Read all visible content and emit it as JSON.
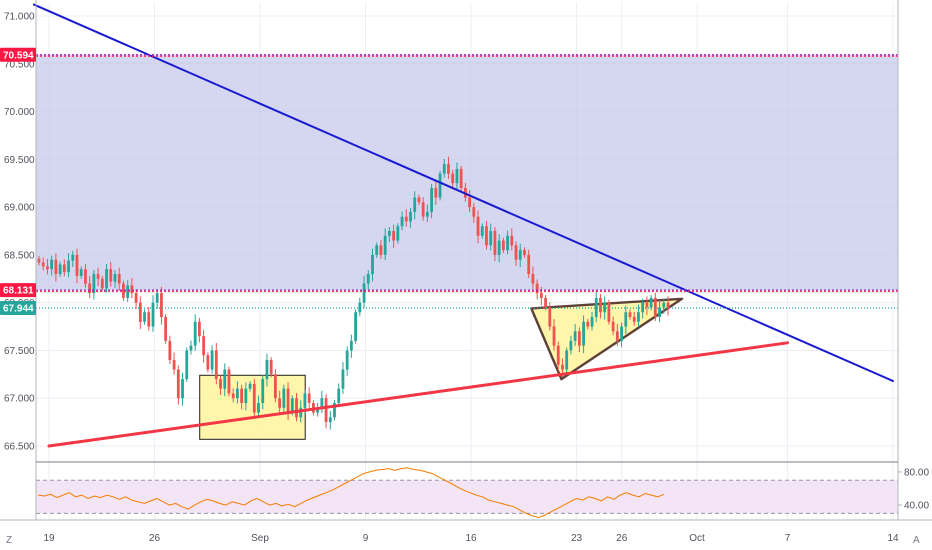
{
  "chart_data": [
    {
      "type": "candlestick",
      "title": "",
      "y_axis": {
        "side": "left",
        "ylim": [
          66.35,
          71.15
        ],
        "ticks": [
          "71.000",
          "70.500",
          "70.000",
          "69.500",
          "69.000",
          "68.500",
          "68.000",
          "67.500",
          "67.000",
          "66.500"
        ],
        "tick_values": [
          71.0,
          70.5,
          70.0,
          69.5,
          69.0,
          68.5,
          68.0,
          67.5,
          67.0,
          66.5
        ]
      },
      "x_axis": {
        "ticks": [
          "19",
          "26",
          "Sep",
          "9",
          "16",
          "23",
          "26",
          "Oct",
          "7",
          "14"
        ],
        "tick_dates": [
          "2019-08-19",
          "2019-08-26",
          "2019-09-02",
          "2019-09-09",
          "2019-09-16",
          "2019-09-23",
          "2019-09-26",
          "2019-10-01",
          "2019-10-07",
          "2019-10-14"
        ]
      },
      "price_badges": [
        {
          "label": "70.594",
          "value": 70.594,
          "color": "#ff1744"
        },
        {
          "label": "68.131",
          "value": 68.131,
          "color": "#ff1744"
        },
        {
          "label": "67.944",
          "value": 67.944,
          "color": "#26a69a"
        }
      ],
      "resistance_zone": {
        "from": 68.131,
        "to": 70.594,
        "color": "#c5cae9"
      },
      "up_color": "#26a69a",
      "down_color": "#ef5350",
      "series": [
        {
          "name": "",
          "values": [
            68.42,
            68.38,
            68.35,
            68.45,
            68.3,
            68.4,
            68.32,
            68.44,
            68.5,
            68.28,
            68.35,
            68.2,
            68.1,
            68.3,
            68.25,
            68.15,
            68.35,
            68.22,
            68.3,
            68.2,
            68.05,
            68.18,
            68.1,
            68.0,
            67.8,
            67.9,
            67.75,
            68.0,
            68.1,
            67.85,
            67.6,
            67.4,
            67.3,
            67.0,
            67.2,
            67.5,
            67.55,
            67.8,
            67.65,
            67.45,
            67.3,
            67.5,
            67.2,
            67.1,
            67.3,
            67.05,
            67.0,
            67.1,
            66.95,
            67.1,
            67.15,
            66.85,
            66.95,
            67.2,
            67.4,
            67.25,
            67.0,
            66.9,
            67.1,
            66.85,
            67.0,
            66.8,
            66.9,
            67.05,
            66.95,
            66.85,
            66.9,
            67.0,
            66.75,
            66.8,
            66.95,
            67.1,
            67.3,
            67.5,
            67.6,
            67.9,
            68.0,
            68.2,
            68.3,
            68.5,
            68.6,
            68.5,
            68.7,
            68.75,
            68.65,
            68.8,
            68.9,
            68.85,
            68.95,
            69.1,
            69.05,
            68.9,
            68.95,
            69.2,
            69.1,
            69.35,
            69.45,
            69.35,
            69.25,
            69.4,
            69.2,
            69.1,
            69.0,
            68.9,
            68.7,
            68.8,
            68.6,
            68.75,
            68.5,
            68.65,
            68.55,
            68.7,
            68.6,
            68.45,
            68.55,
            68.5,
            68.3,
            68.2,
            68.1,
            68.05,
            67.95,
            67.75,
            67.55,
            67.35,
            67.3,
            67.5,
            67.6,
            67.7,
            67.55,
            67.8,
            67.75,
            67.85,
            68.05,
            67.9,
            68.0,
            67.8,
            67.7,
            67.6,
            67.75,
            67.9,
            67.85,
            67.8,
            67.9,
            68.0,
            67.95,
            68.05,
            67.85,
            67.95,
            68.0,
            67.944
          ]
        }
      ],
      "trendlines": [
        {
          "name": "",
          "color": "#1a1ad1",
          "points": [
            [
              "2019-08-18",
              71.12
            ],
            [
              "2019-10-14",
              67.18
            ]
          ]
        },
        {
          "name": "",
          "color": "#f23645",
          "points": [
            [
              "2019-08-19",
              66.5
            ],
            [
              "2019-10-07",
              67.58
            ]
          ]
        }
      ],
      "shapes": [
        {
          "type": "rectangle",
          "fill": "#fff59d",
          "from": [
            "2019-08-29",
            67.24
          ],
          "to": [
            "2019-09-05",
            66.57
          ]
        },
        {
          "type": "triangle",
          "fill": "#fff59d",
          "points": [
            [
              "2019-09-20",
              67.94
            ],
            [
              "2019-09-22",
              67.2
            ],
            [
              "2019-09-30",
              68.04
            ]
          ]
        }
      ]
    },
    {
      "type": "line",
      "title": "",
      "y_axis": {
        "side": "right",
        "ticks": [
          "80.00",
          "40.00"
        ],
        "tick_values": [
          80,
          40
        ],
        "ylim": [
          22,
          92
        ]
      },
      "bands": {
        "upper": 70,
        "lower": 30,
        "fill": "#f3e5f5"
      },
      "series": [
        {
          "name": "",
          "color": "#f57c00",
          "values": [
            52,
            51,
            53,
            49,
            52,
            55,
            50,
            52,
            48,
            51,
            49,
            52,
            50,
            47,
            50,
            46,
            44,
            42,
            45,
            48,
            44,
            40,
            42,
            38,
            35,
            40,
            44,
            47,
            45,
            42,
            40,
            44,
            42,
            40,
            45,
            48,
            44,
            40,
            42,
            39,
            41,
            38,
            42,
            46,
            49,
            52,
            55,
            58,
            62,
            66,
            70,
            74,
            78,
            80,
            82,
            83,
            84,
            82,
            84,
            85,
            83,
            82,
            80,
            78,
            74,
            70,
            66,
            62,
            58,
            55,
            52,
            50,
            46,
            44,
            42,
            40,
            38,
            34,
            30,
            27,
            25,
            28,
            32,
            36,
            40,
            44,
            48,
            46,
            50,
            48,
            45,
            50,
            47,
            52,
            55,
            52,
            50,
            54,
            52,
            50,
            53
          ]
        }
      ]
    }
  ],
  "icons": [
    "z-icon",
    "a-icon"
  ]
}
